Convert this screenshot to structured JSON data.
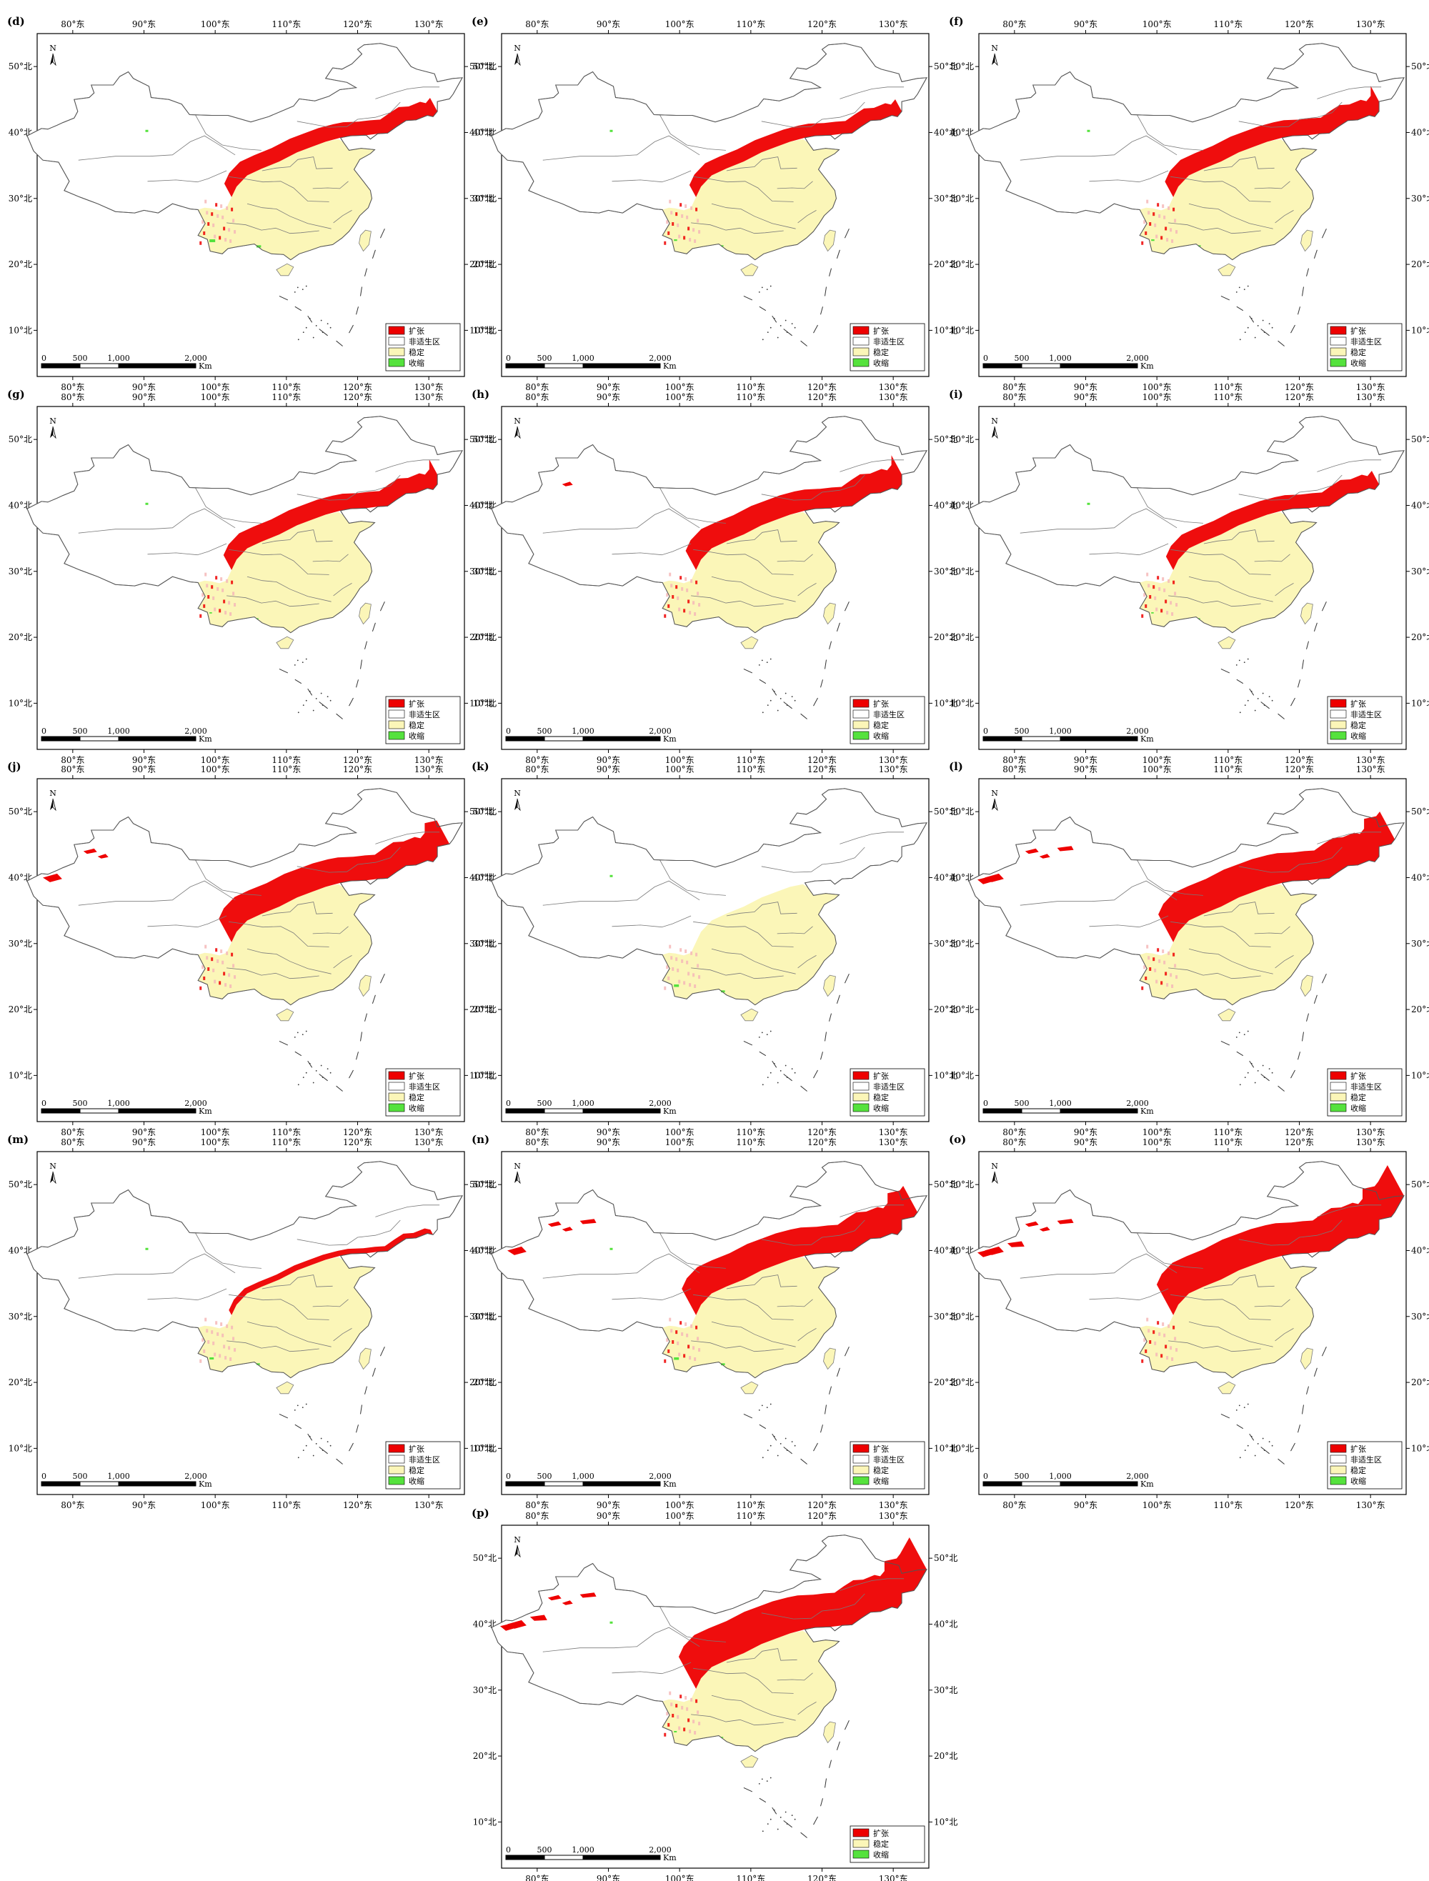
{
  "colors": {
    "expand": "#ee0000",
    "unsuitable": "#ffffff",
    "stable": "#fbf6b8",
    "contract": "#55e23d",
    "border": "#7a7a7a"
  },
  "axis": {
    "lon_labels": [
      "80°东",
      "90°东",
      "100°东",
      "110°东",
      "120°东",
      "130°东"
    ],
    "lat_labels": [
      "50°北",
      "40°北",
      "30°北",
      "20°北",
      "10°北"
    ]
  },
  "north_arrow": "N",
  "scale_bar": {
    "ticks": [
      "0",
      "500",
      "1,000",
      "2,000"
    ],
    "unit": "Km"
  },
  "legend_labels": {
    "expand": "扩张",
    "unsuitable": "非适生区",
    "stable": "稳定",
    "contract": "收缩"
  },
  "panels": [
    {
      "label": "(d)",
      "legend": [
        "expand",
        "unsuitable",
        "stable",
        "contract"
      ],
      "expansion": 0.35,
      "contraction": 0.12
    },
    {
      "label": "(e)",
      "legend": [
        "expand",
        "unsuitable",
        "stable",
        "contract"
      ],
      "expansion": 0.3,
      "contraction": 0.05
    },
    {
      "label": "(f)",
      "legend": [
        "expand",
        "unsuitable",
        "stable",
        "contract"
      ],
      "expansion": 0.42,
      "contraction": 0.05
    },
    {
      "label": "(g)",
      "legend": [
        "expand",
        "unsuitable",
        "stable",
        "contract"
      ],
      "expansion": 0.4,
      "contraction": 0.03
    },
    {
      "label": "(h)",
      "legend": [
        "expand",
        "unsuitable",
        "stable",
        "contract"
      ],
      "expansion": 0.55,
      "contraction": 0.02
    },
    {
      "label": "(i)",
      "legend": [
        "expand",
        "unsuitable",
        "stable",
        "contract"
      ],
      "expansion": 0.35,
      "contraction": 0.03
    },
    {
      "label": "(j)",
      "legend": [
        "expand",
        "unsuitable",
        "stable",
        "contract"
      ],
      "expansion": 0.7,
      "contraction": 0.02
    },
    {
      "label": "(k)",
      "legend": [
        "expand",
        "unsuitable",
        "stable",
        "contract"
      ],
      "expansion": 0.02,
      "contraction": 0.1
    },
    {
      "label": "(l)",
      "legend": [
        "expand",
        "unsuitable",
        "stable",
        "contract"
      ],
      "expansion": 0.85,
      "contraction": 0.01
    },
    {
      "label": "(m)",
      "legend": [
        "expand",
        "unsuitable",
        "stable",
        "contract"
      ],
      "expansion": 0.05,
      "contraction": 0.08
    },
    {
      "label": "(n)",
      "legend": [
        "expand",
        "unsuitable",
        "stable",
        "contract"
      ],
      "expansion": 0.8,
      "contraction": 0.1
    },
    {
      "label": "(o)",
      "legend": [
        "expand",
        "unsuitable",
        "stable",
        "contract"
      ],
      "expansion": 0.95,
      "contraction": 0.01
    },
    {
      "label": "(p)",
      "legend": [
        "expand",
        "stable",
        "contract"
      ],
      "expansion": 1.0,
      "contraction": 0.04
    }
  ]
}
